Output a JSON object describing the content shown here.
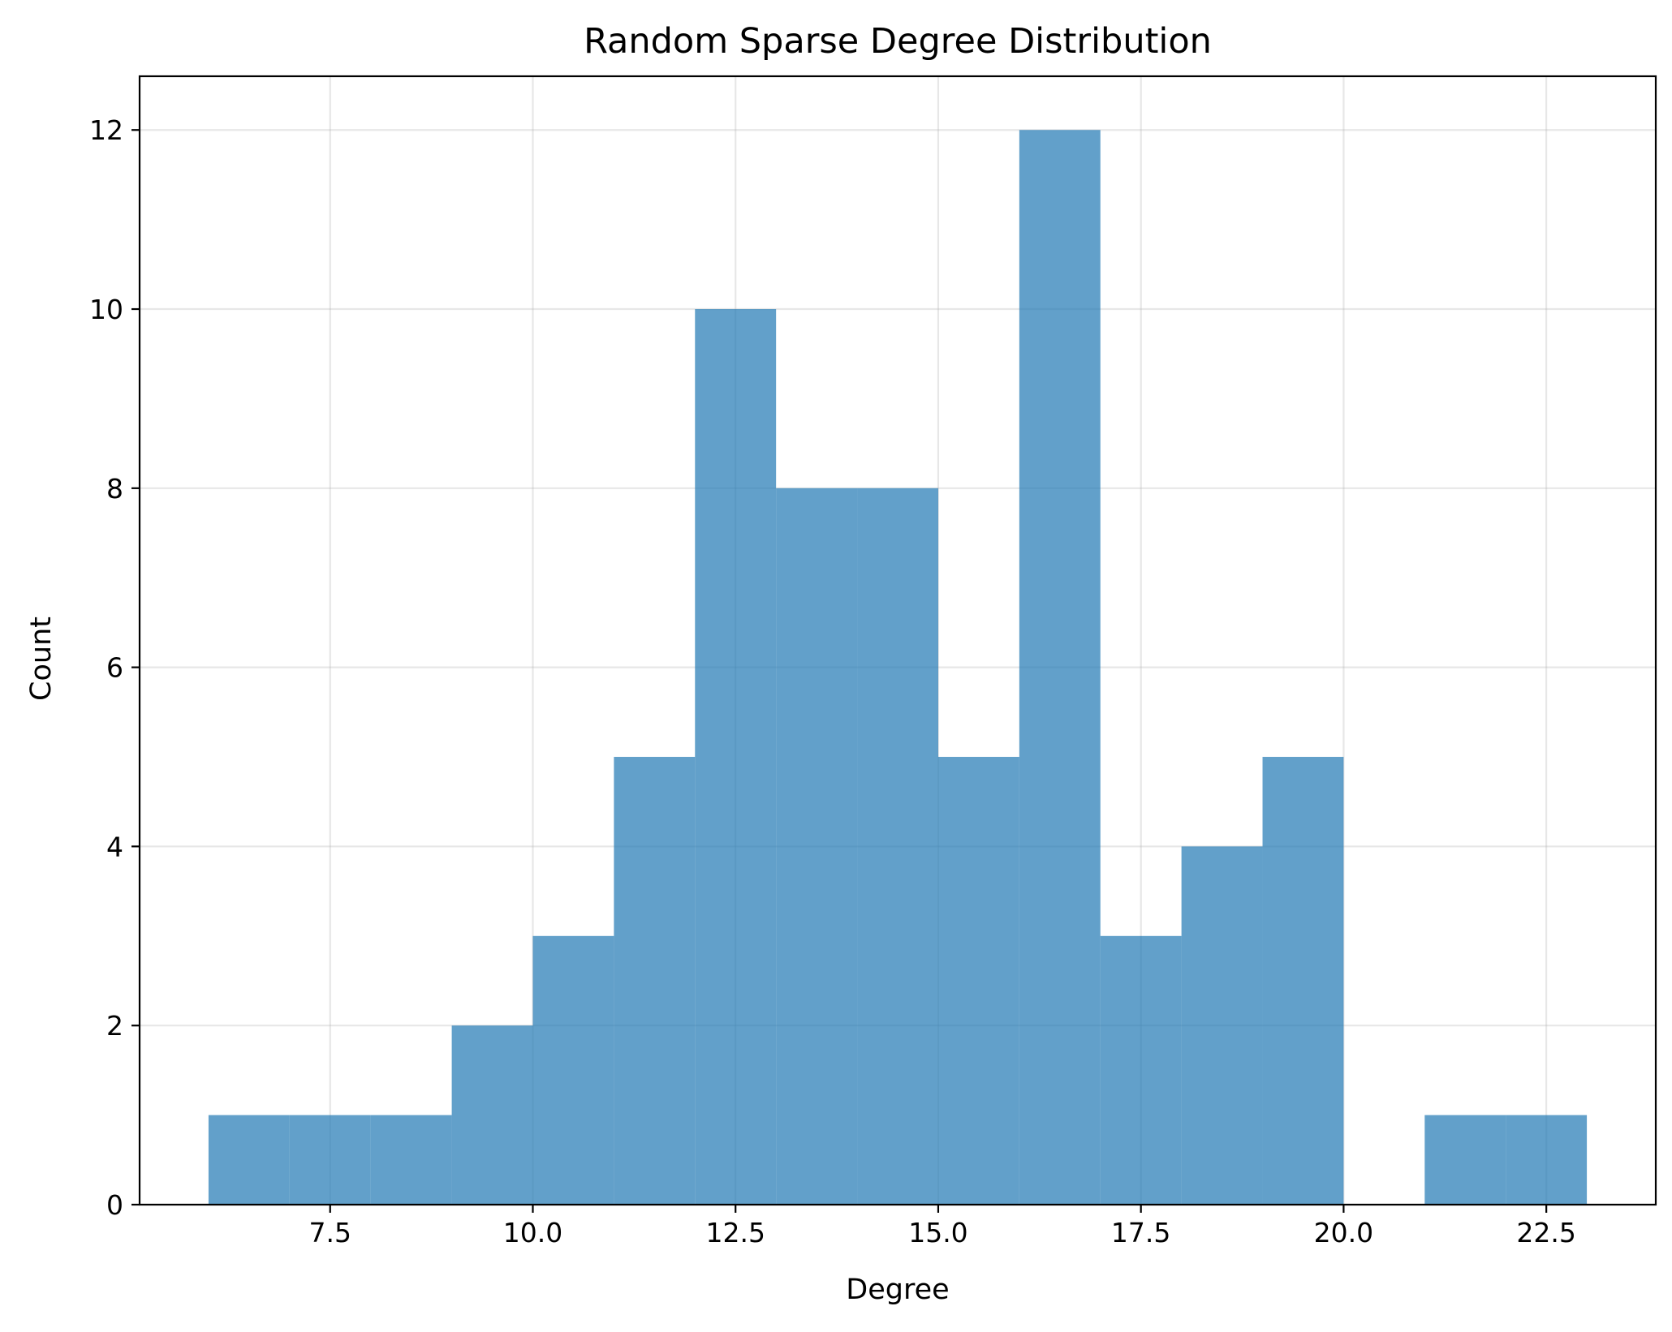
{
  "chart_data": {
    "type": "bar",
    "title": "Random Sparse Degree Distribution",
    "xlabel": "Degree",
    "ylabel": "Count",
    "xlim": [
      5.15,
      23.85
    ],
    "ylim": [
      0,
      12.6
    ],
    "grid": true,
    "bin_edges": [
      6,
      7,
      8,
      9,
      10,
      11,
      12,
      13,
      14,
      15,
      16,
      17,
      18,
      19,
      20,
      21,
      22,
      23
    ],
    "values": [
      1,
      1,
      1,
      2,
      3,
      5,
      10,
      8,
      8,
      5,
      12,
      3,
      4,
      5,
      0,
      1,
      1
    ],
    "x_ticks": [
      {
        "value": 7.5,
        "label": "7.5"
      },
      {
        "value": 10.0,
        "label": "10.0"
      },
      {
        "value": 12.5,
        "label": "12.5"
      },
      {
        "value": 15.0,
        "label": "15.0"
      },
      {
        "value": 17.5,
        "label": "17.5"
      },
      {
        "value": 20.0,
        "label": "20.0"
      },
      {
        "value": 22.5,
        "label": "22.5"
      }
    ],
    "y_ticks": [
      {
        "value": 0,
        "label": "0"
      },
      {
        "value": 2,
        "label": "2"
      },
      {
        "value": 4,
        "label": "4"
      },
      {
        "value": 6,
        "label": "6"
      },
      {
        "value": 8,
        "label": "8"
      },
      {
        "value": 10,
        "label": "10"
      },
      {
        "value": 12,
        "label": "12"
      }
    ],
    "colors": {
      "bar": "#1f77b4",
      "grid": "#b0b0b0",
      "axis": "#000000"
    }
  }
}
